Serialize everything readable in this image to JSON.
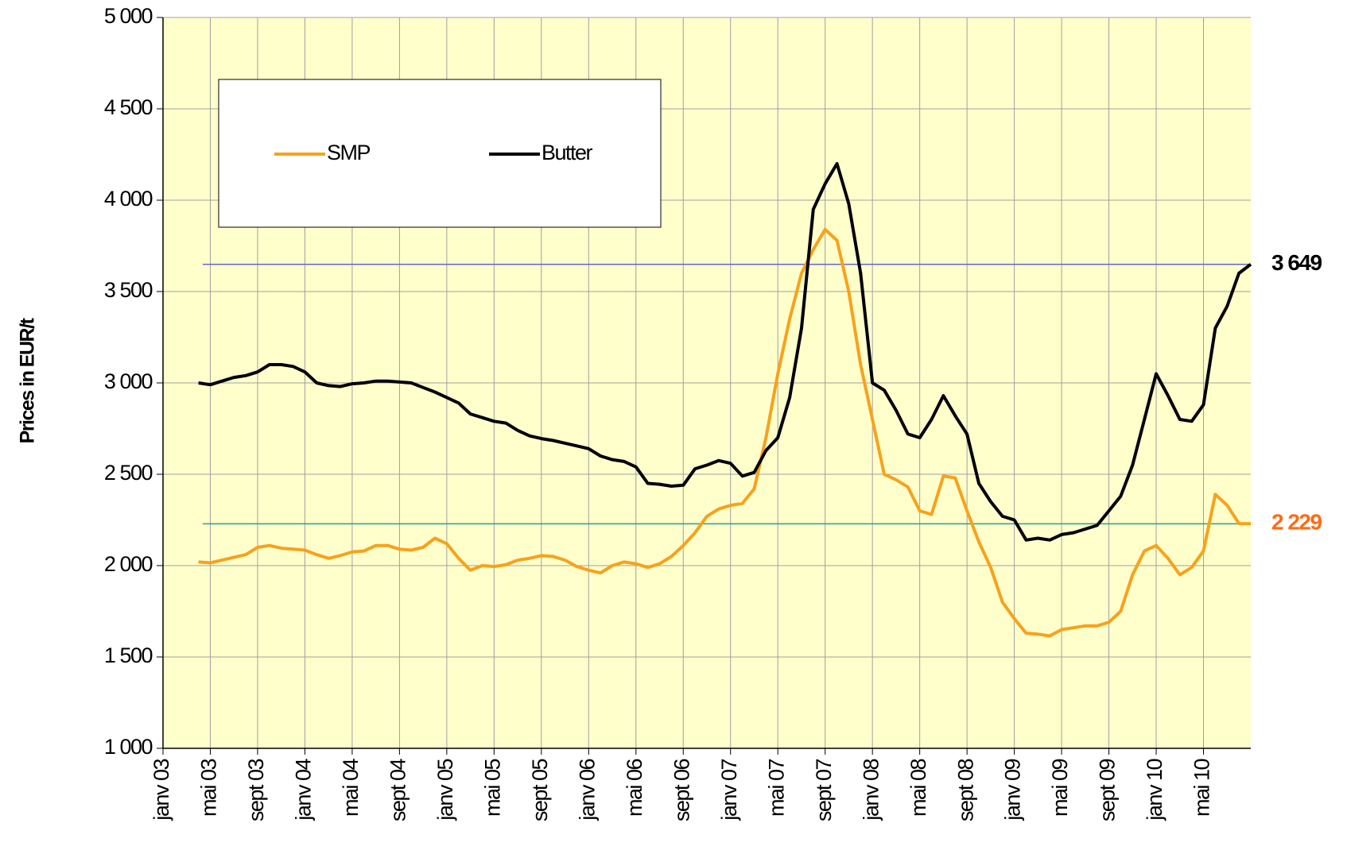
{
  "chart_data": {
    "type": "line",
    "y_label": "Prices in EUR/t",
    "categories": [
      "janv 03",
      null,
      null,
      null,
      "mai 03",
      null,
      null,
      null,
      "sept 03",
      null,
      null,
      null,
      "janv 04",
      null,
      null,
      null,
      "mai 04",
      null,
      null,
      null,
      "sept 04",
      null,
      null,
      null,
      "janv 05",
      null,
      null,
      null,
      "mai 05",
      null,
      null,
      null,
      "sept 05",
      null,
      null,
      null,
      "janv 06",
      null,
      null,
      null,
      "mai 06",
      null,
      null,
      null,
      "sept 06",
      null,
      null,
      null,
      "janv 07",
      null,
      null,
      null,
      "mai 07",
      null,
      null,
      null,
      "sept 07",
      null,
      null,
      null,
      "janv 08",
      null,
      null,
      null,
      "mai 08",
      null,
      null,
      null,
      "sept 08",
      null,
      null,
      null,
      "janv 09",
      null,
      null,
      null,
      "mai 09",
      null,
      null,
      null,
      "sept 09",
      null,
      null,
      null,
      "janv 10",
      null,
      null,
      null,
      "mai 10",
      null,
      null,
      null,
      null
    ],
    "series": [
      {
        "name": "SMP",
        "color": "#f7a21b",
        "values": [
          null,
          null,
          null,
          2020,
          2015,
          2030,
          2045,
          2060,
          2100,
          2110,
          2095,
          2090,
          2085,
          2060,
          2040,
          2055,
          2075,
          2080,
          2110,
          2110,
          2090,
          2085,
          2100,
          2150,
          2120,
          2040,
          1975,
          2000,
          1995,
          2005,
          2030,
          2040,
          2055,
          2050,
          2030,
          1995,
          1975,
          1960,
          2000,
          2020,
          2010,
          1990,
          2010,
          2050,
          2110,
          2180,
          2270,
          2310,
          2330,
          2340,
          2420,
          2700,
          3050,
          3350,
          3600,
          3730,
          3840,
          3780,
          3500,
          3100,
          2800,
          2500,
          2470,
          2430,
          2300,
          2280,
          2490,
          2480,
          2300,
          2130,
          1990,
          1800,
          1710,
          1630,
          1625,
          1615,
          1650,
          1660,
          1670,
          1670,
          1690,
          1750,
          1950,
          2080,
          2110,
          2040,
          1950,
          1990,
          2080,
          2390,
          2330,
          2230,
          2229
        ]
      },
      {
        "name": "Butter",
        "color": "#000000",
        "values": [
          null,
          null,
          null,
          3000,
          2990,
          3010,
          3030,
          3040,
          3060,
          3100,
          3100,
          3090,
          3060,
          3000,
          2985,
          2980,
          2995,
          3000,
          3010,
          3010,
          3005,
          3000,
          2975,
          2950,
          2920,
          2890,
          2830,
          2810,
          2790,
          2780,
          2740,
          2710,
          2695,
          2685,
          2670,
          2655,
          2640,
          2600,
          2580,
          2570,
          2540,
          2450,
          2445,
          2435,
          2440,
          2530,
          2550,
          2575,
          2560,
          2490,
          2510,
          2630,
          2700,
          2920,
          3300,
          3950,
          4090,
          4200,
          3980,
          3600,
          3000,
          2960,
          2850,
          2720,
          2700,
          2800,
          2930,
          2820,
          2720,
          2450,
          2350,
          2270,
          2250,
          2140,
          2150,
          2140,
          2170,
          2180,
          2200,
          2220,
          2300,
          2380,
          2550,
          2800,
          3050,
          2930,
          2800,
          2790,
          2880,
          3300,
          3420,
          3600,
          3649
        ]
      }
    ],
    "ylim": [
      1000,
      5000
    ],
    "yticks": [
      {
        "value": 1000,
        "label": "1 000"
      },
      {
        "value": 1500,
        "label": "1 500"
      },
      {
        "value": 2000,
        "label": "2 000"
      },
      {
        "value": 2500,
        "label": "2 500"
      },
      {
        "value": 3000,
        "label": "3 000"
      },
      {
        "value": 3500,
        "label": "3 500"
      },
      {
        "value": 4000,
        "label": "4 000"
      },
      {
        "value": 4500,
        "label": "4 500"
      },
      {
        "value": 5000,
        "label": "5 000"
      }
    ],
    "grid": true,
    "legend": "top-left",
    "reference_lines": [
      {
        "value": 3649,
        "label": "3 649",
        "color": "#6666cc",
        "label_color": "#000000"
      },
      {
        "value": 2229,
        "label": "2 229",
        "color": "#339999",
        "label_color": "#ff6a13"
      }
    ]
  }
}
